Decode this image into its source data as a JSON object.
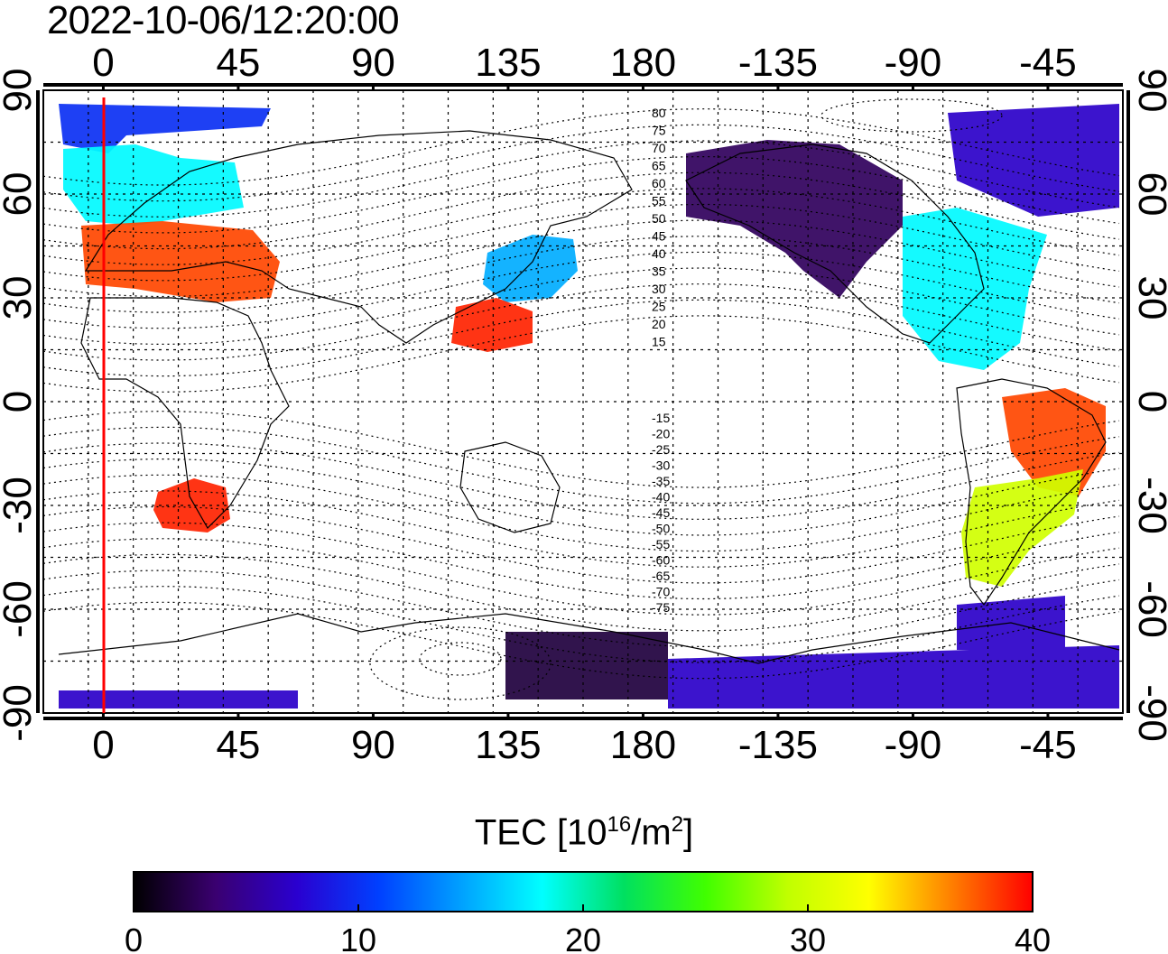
{
  "title": "2022-10-06/12:20:00",
  "axes": {
    "lon_ticks": [
      "0",
      "45",
      "90",
      "135",
      "180",
      "-135",
      "-90",
      "-45"
    ],
    "lat_ticks": [
      "90",
      "60",
      "30",
      "0",
      "-30",
      "-60",
      "-90"
    ]
  },
  "magnetic_contours": {
    "north_labels": [
      "80",
      "75",
      "70",
      "65",
      "60",
      "55",
      "50",
      "45",
      "40",
      "35",
      "30",
      "25",
      "20",
      "15"
    ],
    "south_labels": [
      "-15",
      "-20",
      "-25",
      "-30",
      "-35",
      "-40",
      "-45",
      "-50",
      "-55",
      "-60",
      "-65",
      "-70",
      "-75"
    ]
  },
  "terminator_color": "#ff0000",
  "colorbar": {
    "label_prefix": "TEC  [10",
    "label_exp1": "16",
    "label_mid": "/m",
    "label_exp2": "2",
    "label_suffix": "]",
    "min": 0,
    "max": 40,
    "tick_labels": [
      "0",
      "10",
      "20",
      "30",
      "40"
    ],
    "colormap": [
      "#000000",
      "#3a0070",
      "#2a00d0",
      "#0040ff",
      "#00a0ff",
      "#00ffff",
      "#00e060",
      "#40ff00",
      "#c0ff00",
      "#ffff00",
      "#ff8000",
      "#ff0000"
    ]
  },
  "regions": [
    {
      "name": "europe",
      "tec": 38
    },
    {
      "name": "scandinavia",
      "tec": 18
    },
    {
      "name": "arctic-europe",
      "tec": 10
    },
    {
      "name": "africa-south",
      "tec": 39
    },
    {
      "name": "japan",
      "tec": 15
    },
    {
      "name": "china-south",
      "tec": 39
    },
    {
      "name": "north-america-west",
      "tec": 3
    },
    {
      "name": "north-america-east",
      "tec": 18
    },
    {
      "name": "brazil",
      "tec": 38
    },
    {
      "name": "argentina",
      "tec": 30
    },
    {
      "name": "antarctica-pacific",
      "tec": 2
    },
    {
      "name": "antarctica-band",
      "tec": 7
    }
  ]
}
